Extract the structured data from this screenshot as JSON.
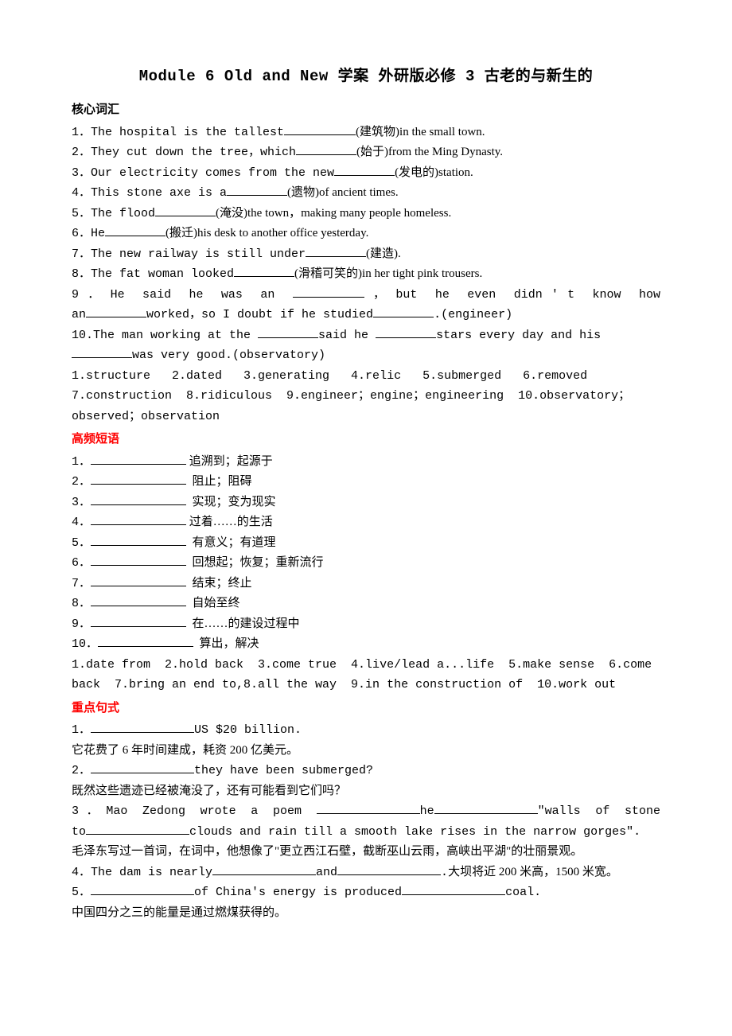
{
  "title": "Module 6 Old and New  学案 外研版必修 3 古老的与新生的",
  "sections": {
    "vocab_header": "核心词汇",
    "vocab_items": [
      {
        "num": "1．",
        "pre": "The hospital is the tallest",
        "cn_after": "(建筑物)in the small town.",
        "blank": "w6"
      },
      {
        "num": "2．",
        "pre": "They cut down the tree，which",
        "cn_after": "(始于)from the Ming Dynasty.",
        "blank": "w5"
      },
      {
        "num": "3．",
        "pre": "Our electricity comes from the new",
        "cn_after": "(发电的)station.",
        "blank": "w5"
      },
      {
        "num": "4．",
        "pre": "This stone axe is a",
        "cn_after": "(遗物)of ancient times.",
        "blank": "w5"
      },
      {
        "num": "5．",
        "pre": "The flood",
        "cn_after": "(淹没)the town，making many people homeless.",
        "blank": "w5"
      },
      {
        "num": "6．",
        "pre": "He",
        "cn_after": "(搬迁)his desk to another office yesterday.",
        "blank": "w5"
      },
      {
        "num": "7．",
        "pre": "The new railway is still under",
        "cn_after": "(建造).",
        "blank": "w5"
      },
      {
        "num": "8．",
        "pre": "The fat woman looked",
        "cn_after": "(滑稽可笑的)in her tight pink trousers.",
        "blank": "w5"
      }
    ],
    "vocab_9": {
      "line1_pre": "9 ． He  said  he  was  an  ",
      "line1_post": " ， but  he  even  didn ' t  know  how",
      "line2_pre": "an",
      "line2_mid": "worked，so I doubt if he studied",
      "line2_post": ".(engineer)"
    },
    "vocab_10": {
      "line1_pre": "10.The man working at the ",
      "line1_mid": "said he ",
      "line1_post": "stars every day and his",
      "line2_post": "was very good.(observatory)"
    },
    "vocab_answers": "1.structure   2.dated   3.generating   4.relic   5.submerged   6.removed 7.construction  8.ridiculous  9.engineer；engine；engineering  10.observatory；observed；observation",
    "phrase_header": "高频短语",
    "phrase_items": [
      {
        "num": "1．",
        "cn": " 追溯到；起源于"
      },
      {
        "num": "2．",
        "cn": "  阻止；阻碍"
      },
      {
        "num": "3．",
        "cn": "  实现；变为现实"
      },
      {
        "num": "4．",
        "cn": " 过着……的生活"
      },
      {
        "num": "5．",
        "cn": "  有意义；有道理"
      },
      {
        "num": "6．",
        "cn": "  回想起；恢复；重新流行"
      },
      {
        "num": "7．",
        "cn": "  结束；终止"
      },
      {
        "num": "8．",
        "cn": "  自始至终"
      },
      {
        "num": "9．",
        "cn": "  在……的建设过程中"
      },
      {
        "num": "10．",
        "cn": "  算出，解决"
      }
    ],
    "phrase_answers": "1.date from  2.hold back  3.come true  4.live/lead a...life  5.make sense  6.come back  7.bring an end to,8.all the way  9.in the construction of  10.work out",
    "sentence_header": "重点句式",
    "sent1": {
      "num": "1．",
      "post": "US $20 billion.",
      "cn": "它花费了 6 年时间建成，耗资 200 亿美元。"
    },
    "sent2": {
      "num": "2．",
      "post": "they have been submerged?",
      "cn": "既然这些遗迹已经被淹没了，还有可能看到它们吗？"
    },
    "sent3": {
      "line1_a": "3．Mao Zedong wrote a poem ",
      "line1_b": "he",
      "line1_c": "\"walls of stone",
      "line2_a": "to",
      "line2_b": "clouds and rain till a smooth lake rises in the narrow gorges\".",
      "cn": "毛泽东写过一首词，在词中，他想像了\"更立西江石壁，截断巫山云雨，高峡出平湖\"的壮丽景观。"
    },
    "sent4": {
      "a": "4．The dam is nearly",
      "b": "and",
      "c": ".",
      "cn": "大坝将近 200 米高，1500 米宽。"
    },
    "sent5": {
      "a": "5．",
      "b": "of China's energy is produced",
      "c": "coal.",
      "cn": "中国四分之三的能量是通过燃煤获得的。"
    }
  }
}
